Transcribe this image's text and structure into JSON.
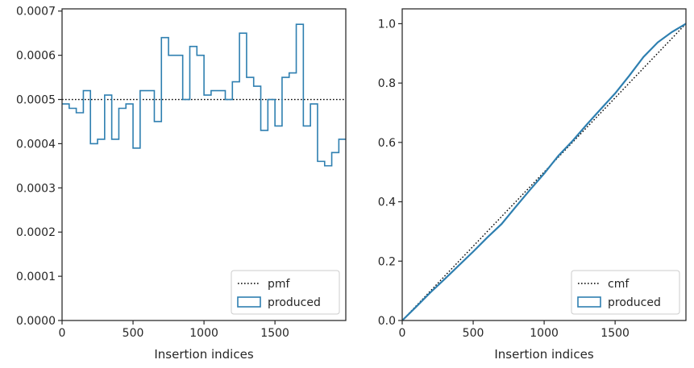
{
  "colors": {
    "produced": "#2e7fb0",
    "reference": "#000000",
    "spine": "#262626"
  },
  "chart_data": [
    {
      "type": "step",
      "xlabel": "Insertion indices",
      "ylabel": "",
      "xlim": [
        0,
        1999
      ],
      "ylim": [
        0,
        0.000705
      ],
      "x_ticks": [
        0,
        500,
        1000,
        1500
      ],
      "y_ticks": [
        0,
        0.0001,
        0.0002,
        0.0003,
        0.0004,
        0.0005,
        0.0006,
        0.0007
      ],
      "y_tick_labels": [
        "0.0000",
        "0.0001",
        "0.0002",
        "0.0003",
        "0.0004",
        "0.0005",
        "0.0006",
        "0.0007"
      ],
      "legend_position": "bottom-right",
      "series": [
        {
          "name": "pmf",
          "style": "dotted",
          "color": "#000000",
          "x": [
            0,
            1999
          ],
          "values": [
            0.0005,
            0.0005
          ]
        },
        {
          "name": "produced",
          "style": "step",
          "color": "#2e7fb0",
          "bin_edges": [
            0,
            50,
            100,
            150,
            200,
            250,
            300,
            350,
            400,
            450,
            500,
            550,
            600,
            650,
            700,
            750,
            800,
            850,
            900,
            950,
            1000,
            1050,
            1100,
            1150,
            1200,
            1250,
            1300,
            1350,
            1400,
            1450,
            1500,
            1550,
            1600,
            1650,
            1700,
            1750,
            1800,
            1850,
            1900,
            1950,
            1999
          ],
          "values": [
            0.00049,
            0.00048,
            0.00047,
            0.00052,
            0.0004,
            0.00041,
            0.00051,
            0.00041,
            0.00048,
            0.00049,
            0.00039,
            0.00052,
            0.00052,
            0.00045,
            0.00064,
            0.0006,
            0.0006,
            0.0005,
            0.00062,
            0.0006,
            0.00051,
            0.00052,
            0.00052,
            0.0005,
            0.00054,
            0.00065,
            0.00055,
            0.00053,
            0.00043,
            0.0005,
            0.00044,
            0.00055,
            0.00056,
            0.00067,
            0.00044,
            0.00049,
            0.00036,
            0.00035,
            0.00038,
            0.00041
          ]
        }
      ]
    },
    {
      "type": "line",
      "xlabel": "Insertion indices",
      "ylabel": "",
      "xlim": [
        0,
        1999
      ],
      "ylim": [
        0,
        1.05
      ],
      "x_ticks": [
        0,
        500,
        1000,
        1500
      ],
      "y_ticks": [
        0,
        0.2,
        0.4,
        0.6,
        0.8,
        1.0
      ],
      "y_tick_labels": [
        "0.0",
        "0.2",
        "0.4",
        "0.6",
        "0.8",
        "1.0"
      ],
      "legend_position": "bottom-right",
      "series": [
        {
          "name": "cmf",
          "style": "dotted",
          "color": "#000000",
          "x": [
            0,
            1999
          ],
          "values": [
            0,
            1.0
          ]
        },
        {
          "name": "produced",
          "style": "line",
          "color": "#2e7fb0",
          "x": [
            0,
            100,
            200,
            300,
            400,
            500,
            600,
            700,
            800,
            900,
            1000,
            1100,
            1200,
            1300,
            1400,
            1500,
            1600,
            1700,
            1800,
            1900,
            1999
          ],
          "values": [
            0,
            0.047,
            0.095,
            0.14,
            0.186,
            0.232,
            0.28,
            0.325,
            0.383,
            0.44,
            0.495,
            0.555,
            0.605,
            0.66,
            0.713,
            0.765,
            0.825,
            0.888,
            0.937,
            0.972,
            1.0
          ]
        }
      ]
    }
  ]
}
